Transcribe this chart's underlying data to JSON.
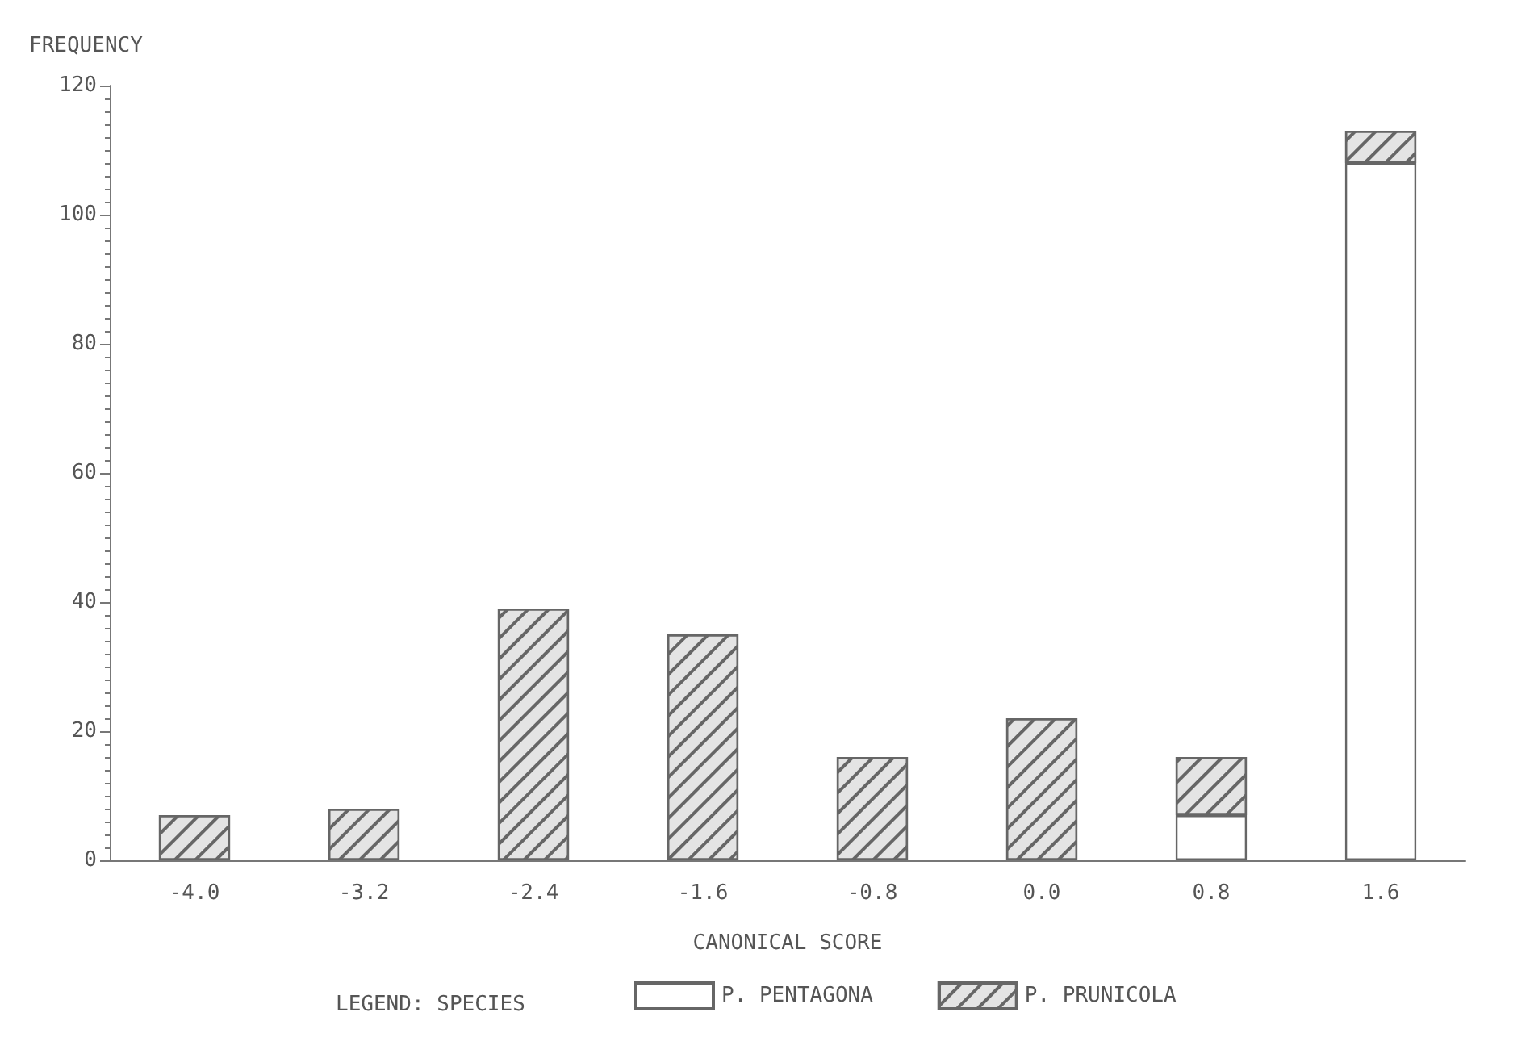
{
  "chart_data": {
    "type": "bar",
    "xlabel": "CANONICAL SCORE",
    "ylabel": "FREQUENCY",
    "legend_title": "LEGEND: SPECIES",
    "categories": [
      "-4.0",
      "-3.2",
      "-2.4",
      "-1.6",
      "-0.8",
      "0.0",
      "0.8",
      "1.6"
    ],
    "series": [
      {
        "name": "P. PENTAGONA",
        "color": "#ffffff",
        "values": [
          0,
          0,
          0,
          0,
          0,
          0,
          7,
          108
        ]
      },
      {
        "name": "P. PRUNICOLA",
        "color": "#e4e4e4",
        "values": [
          7,
          8,
          39,
          35,
          16,
          22,
          9,
          5
        ]
      }
    ],
    "stacked": true,
    "ylim": [
      0,
      120
    ],
    "yticks": [
      0,
      20,
      40,
      60,
      80,
      100,
      120
    ],
    "grid": false,
    "legend": "bottom"
  }
}
